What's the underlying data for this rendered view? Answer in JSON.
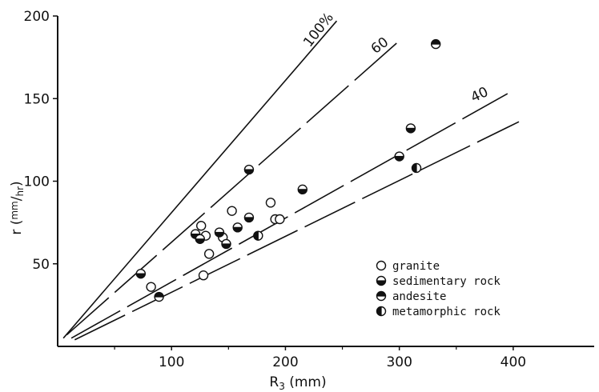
{
  "chart_data": {
    "type": "scatter",
    "xlabel": {
      "main": "R",
      "sub": "3",
      "unit": " (mm)"
    },
    "ylabel": {
      "main": "r",
      "unit_num": "mm",
      "unit_den": "hr"
    },
    "xlim": [
      0,
      450
    ],
    "ylim": [
      0,
      200
    ],
    "xticks": [
      {
        "value": 100,
        "label": "100"
      },
      {
        "value": 200,
        "label": "200"
      },
      {
        "value": 300,
        "label": "300"
      },
      {
        "value": 400,
        "label": "400"
      }
    ],
    "yticks": [
      {
        "value": 50,
        "label": "50"
      },
      {
        "value": 100,
        "label": "100"
      },
      {
        "value": 150,
        "label": "150"
      },
      {
        "value": 200,
        "label": "200"
      }
    ],
    "reference_lines": [
      {
        "label": "100%",
        "x": [
          5,
          245
        ],
        "y": [
          5,
          197
        ],
        "dash": false
      },
      {
        "label": "60",
        "x": [
          8,
          300
        ],
        "y": [
          7,
          185
        ],
        "dash": true
      },
      {
        "label": "40",
        "x": [
          12,
          395
        ],
        "y": [
          5,
          153
        ],
        "dash": true
      },
      {
        "label": "",
        "x": [
          15,
          405
        ],
        "y": [
          4,
          136
        ],
        "dash": true
      }
    ],
    "line_label_positions": [
      {
        "label": "100%",
        "x": 232,
        "y": 190,
        "angle": -52
      },
      {
        "label": "60",
        "x": 285,
        "y": 180,
        "angle": -36
      },
      {
        "label": "40",
        "x": 372,
        "y": 150,
        "angle": -25
      }
    ],
    "series": [
      {
        "name": "granite",
        "fill": "none",
        "points": [
          [
            82,
            36
          ],
          [
            126,
            73
          ],
          [
            130,
            67
          ],
          [
            133,
            56
          ],
          [
            128,
            43
          ],
          [
            145,
            66
          ],
          [
            153,
            82
          ],
          [
            187,
            87
          ],
          [
            191,
            77
          ],
          [
            195,
            77
          ]
        ]
      },
      {
        "name": "sedimentary rock",
        "fill": "bottom",
        "points": [
          [
            73,
            44
          ],
          [
            121,
            68
          ],
          [
            125,
            65
          ],
          [
            142,
            69
          ],
          [
            148,
            62
          ],
          [
            158,
            72
          ],
          [
            168,
            78
          ],
          [
            168,
            107
          ],
          [
            215,
            95
          ],
          [
            300,
            115
          ],
          [
            310,
            132
          ]
        ]
      },
      {
        "name": "andesite",
        "fill": "top",
        "points": [
          [
            89,
            30
          ],
          [
            332,
            183
          ]
        ]
      },
      {
        "name": "metamorphic rock",
        "fill": "left",
        "points": [
          [
            176,
            67
          ],
          [
            315,
            108
          ]
        ]
      }
    ]
  }
}
